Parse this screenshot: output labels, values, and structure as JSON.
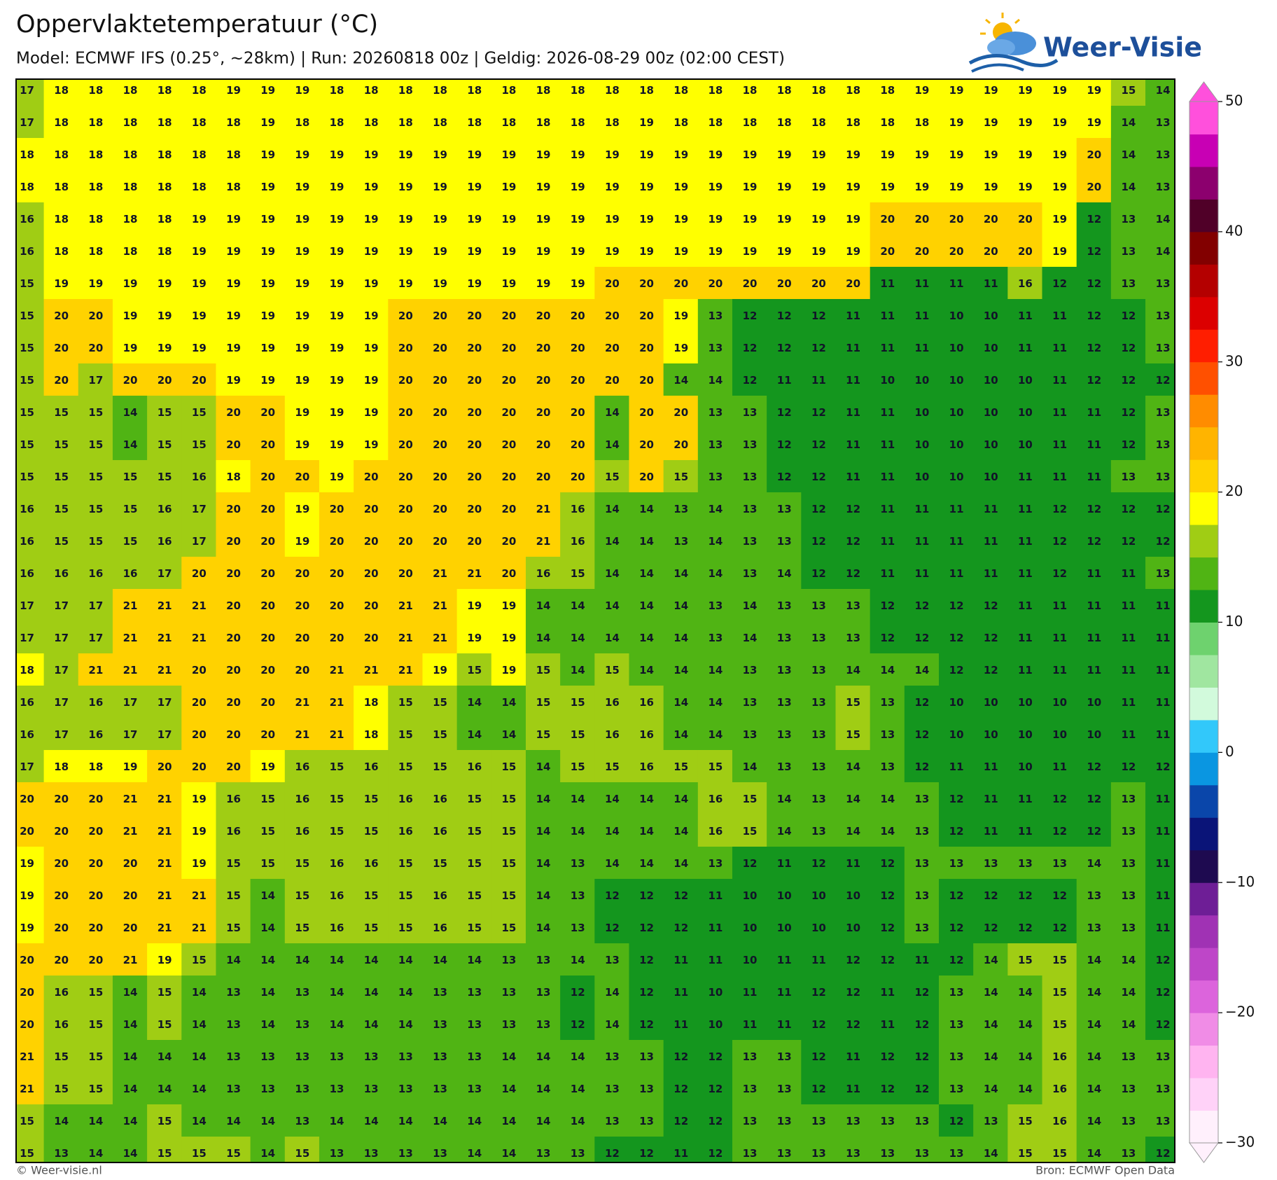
{
  "header": {
    "title": "Oppervlaktetemperatuur (°C)",
    "subtitle": "Model: ECMWF IFS (0.25°, ~28km)  |  Run: 20260818 00z  |  Geldig: 2026-08-29 00z (02:00 CEST)",
    "logo": "Weer-Visie"
  },
  "map": {
    "rows": [
      [
        17,
        18,
        18,
        18,
        18,
        18,
        19,
        19,
        19,
        18,
        18,
        18,
        18,
        18,
        18,
        18,
        18,
        18,
        18,
        18,
        18,
        18,
        18,
        18,
        18,
        18,
        19,
        19,
        19,
        19,
        19,
        19,
        15,
        14
      ],
      [
        17,
        18,
        18,
        18,
        18,
        18,
        18,
        19,
        18,
        18,
        18,
        18,
        18,
        18,
        18,
        18,
        18,
        18,
        19,
        18,
        18,
        18,
        18,
        18,
        18,
        18,
        18,
        19,
        19,
        19,
        19,
        19,
        14,
        13
      ],
      [
        18,
        18,
        18,
        18,
        18,
        18,
        18,
        19,
        19,
        19,
        19,
        19,
        19,
        19,
        19,
        19,
        19,
        19,
        19,
        19,
        19,
        19,
        19,
        19,
        19,
        19,
        19,
        19,
        19,
        19,
        19,
        20,
        14,
        13
      ],
      [
        18,
        18,
        18,
        18,
        18,
        18,
        18,
        19,
        19,
        19,
        19,
        19,
        19,
        19,
        19,
        19,
        19,
        19,
        19,
        19,
        19,
        19,
        19,
        19,
        19,
        19,
        19,
        19,
        19,
        19,
        19,
        20,
        14,
        13
      ],
      [
        16,
        18,
        18,
        18,
        18,
        19,
        19,
        19,
        19,
        19,
        19,
        19,
        19,
        19,
        19,
        19,
        19,
        19,
        19,
        19,
        19,
        19,
        19,
        19,
        19,
        20,
        20,
        20,
        20,
        20,
        19,
        12,
        13,
        14
      ],
      [
        16,
        18,
        18,
        18,
        18,
        19,
        19,
        19,
        19,
        19,
        19,
        19,
        19,
        19,
        19,
        19,
        19,
        19,
        19,
        19,
        19,
        19,
        19,
        19,
        19,
        20,
        20,
        20,
        20,
        20,
        19,
        12,
        13,
        14
      ],
      [
        15,
        19,
        19,
        19,
        19,
        19,
        19,
        19,
        19,
        19,
        19,
        19,
        19,
        19,
        19,
        19,
        19,
        20,
        20,
        20,
        20,
        20,
        20,
        20,
        20,
        11,
        11,
        11,
        11,
        16,
        12,
        12,
        13,
        13
      ],
      [
        15,
        20,
        20,
        19,
        19,
        19,
        19,
        19,
        19,
        19,
        19,
        20,
        20,
        20,
        20,
        20,
        20,
        20,
        20,
        19,
        13,
        12,
        12,
        12,
        11,
        11,
        11,
        10,
        10,
        11,
        11,
        12,
        12,
        13
      ],
      [
        15,
        20,
        20,
        19,
        19,
        19,
        19,
        19,
        19,
        19,
        19,
        20,
        20,
        20,
        20,
        20,
        20,
        20,
        20,
        19,
        13,
        12,
        12,
        12,
        11,
        11,
        11,
        10,
        10,
        11,
        11,
        12,
        12,
        13
      ],
      [
        15,
        20,
        17,
        20,
        20,
        20,
        19,
        19,
        19,
        19,
        19,
        20,
        20,
        20,
        20,
        20,
        20,
        20,
        20,
        14,
        14,
        12,
        11,
        11,
        11,
        10,
        10,
        10,
        10,
        10,
        11,
        12,
        12,
        12
      ],
      [
        15,
        15,
        15,
        14,
        15,
        15,
        20,
        20,
        19,
        19,
        19,
        20,
        20,
        20,
        20,
        20,
        20,
        14,
        20,
        20,
        13,
        13,
        12,
        12,
        11,
        11,
        10,
        10,
        10,
        10,
        11,
        11,
        12,
        13
      ],
      [
        15,
        15,
        15,
        14,
        15,
        15,
        20,
        20,
        19,
        19,
        19,
        20,
        20,
        20,
        20,
        20,
        20,
        14,
        20,
        20,
        13,
        13,
        12,
        12,
        11,
        11,
        10,
        10,
        10,
        10,
        11,
        11,
        12,
        13
      ],
      [
        15,
        15,
        15,
        15,
        15,
        16,
        18,
        20,
        20,
        19,
        20,
        20,
        20,
        20,
        20,
        20,
        20,
        15,
        20,
        15,
        13,
        13,
        12,
        12,
        11,
        11,
        10,
        10,
        10,
        11,
        11,
        11,
        13,
        13
      ],
      [
        16,
        15,
        15,
        15,
        16,
        17,
        20,
        20,
        19,
        20,
        20,
        20,
        20,
        20,
        20,
        21,
        16,
        14,
        14,
        13,
        14,
        13,
        13,
        12,
        12,
        11,
        11,
        11,
        11,
        11,
        12,
        12,
        12,
        12
      ],
      [
        16,
        15,
        15,
        15,
        16,
        17,
        20,
        20,
        19,
        20,
        20,
        20,
        20,
        20,
        20,
        21,
        16,
        14,
        14,
        13,
        14,
        13,
        13,
        12,
        12,
        11,
        11,
        11,
        11,
        11,
        12,
        12,
        12,
        12
      ],
      [
        16,
        16,
        16,
        16,
        17,
        20,
        20,
        20,
        20,
        20,
        20,
        20,
        21,
        21,
        20,
        16,
        15,
        14,
        14,
        14,
        14,
        13,
        14,
        12,
        12,
        11,
        11,
        11,
        11,
        11,
        12,
        11,
        11,
        13
      ],
      [
        17,
        17,
        17,
        21,
        21,
        21,
        20,
        20,
        20,
        20,
        20,
        21,
        21,
        19,
        19,
        14,
        14,
        14,
        14,
        14,
        13,
        14,
        13,
        13,
        13,
        12,
        12,
        12,
        12,
        11,
        11,
        11,
        11,
        11
      ],
      [
        17,
        17,
        17,
        21,
        21,
        21,
        20,
        20,
        20,
        20,
        20,
        21,
        21,
        19,
        19,
        14,
        14,
        14,
        14,
        14,
        13,
        14,
        13,
        13,
        13,
        12,
        12,
        12,
        12,
        11,
        11,
        11,
        11,
        11
      ],
      [
        18,
        17,
        21,
        21,
        21,
        20,
        20,
        20,
        20,
        21,
        21,
        21,
        19,
        15,
        19,
        15,
        14,
        15,
        14,
        14,
        14,
        13,
        13,
        13,
        14,
        14,
        14,
        12,
        12,
        11,
        11,
        11,
        11,
        11
      ],
      [
        16,
        17,
        16,
        17,
        17,
        20,
        20,
        20,
        21,
        21,
        18,
        15,
        15,
        14,
        14,
        15,
        15,
        16,
        16,
        14,
        14,
        13,
        13,
        13,
        15,
        13,
        12,
        10,
        10,
        10,
        10,
        10,
        11,
        11
      ],
      [
        16,
        17,
        16,
        17,
        17,
        20,
        20,
        20,
        21,
        21,
        18,
        15,
        15,
        14,
        14,
        15,
        15,
        16,
        16,
        14,
        14,
        13,
        13,
        13,
        15,
        13,
        12,
        10,
        10,
        10,
        10,
        10,
        11,
        11
      ],
      [
        17,
        18,
        18,
        19,
        20,
        20,
        20,
        19,
        16,
        15,
        16,
        15,
        15,
        16,
        15,
        14,
        15,
        15,
        16,
        15,
        15,
        14,
        13,
        13,
        14,
        13,
        12,
        11,
        11,
        10,
        11,
        12,
        12,
        12
      ],
      [
        20,
        20,
        20,
        21,
        21,
        19,
        16,
        15,
        16,
        15,
        15,
        16,
        16,
        15,
        15,
        14,
        14,
        14,
        14,
        14,
        16,
        15,
        14,
        13,
        14,
        14,
        13,
        12,
        11,
        11,
        12,
        12,
        13,
        11
      ],
      [
        20,
        20,
        20,
        21,
        21,
        19,
        16,
        15,
        16,
        15,
        15,
        16,
        16,
        15,
        15,
        14,
        14,
        14,
        14,
        14,
        16,
        15,
        14,
        13,
        14,
        14,
        13,
        12,
        11,
        11,
        12,
        12,
        13,
        11
      ],
      [
        19,
        20,
        20,
        20,
        21,
        19,
        15,
        15,
        15,
        16,
        16,
        15,
        15,
        15,
        15,
        14,
        13,
        14,
        14,
        14,
        13,
        12,
        11,
        12,
        11,
        12,
        13,
        13,
        13,
        13,
        13,
        14,
        13,
        11
      ],
      [
        19,
        20,
        20,
        20,
        21,
        21,
        15,
        14,
        15,
        16,
        15,
        15,
        16,
        15,
        15,
        14,
        13,
        12,
        12,
        12,
        11,
        10,
        10,
        10,
        10,
        12,
        13,
        12,
        12,
        12,
        12,
        13,
        13,
        11
      ],
      [
        19,
        20,
        20,
        20,
        21,
        21,
        15,
        14,
        15,
        16,
        15,
        15,
        16,
        15,
        15,
        14,
        13,
        12,
        12,
        12,
        11,
        10,
        10,
        10,
        10,
        12,
        13,
        12,
        12,
        12,
        12,
        13,
        13,
        11
      ],
      [
        20,
        20,
        20,
        21,
        19,
        15,
        14,
        14,
        14,
        14,
        14,
        14,
        14,
        14,
        13,
        13,
        14,
        13,
        12,
        11,
        11,
        10,
        11,
        11,
        12,
        12,
        11,
        12,
        14,
        15,
        15,
        14,
        14,
        12
      ],
      [
        20,
        16,
        15,
        14,
        15,
        14,
        13,
        14,
        13,
        14,
        14,
        14,
        13,
        13,
        13,
        13,
        12,
        14,
        12,
        11,
        10,
        11,
        11,
        12,
        12,
        11,
        12,
        13,
        14,
        14,
        15,
        14,
        14,
        12
      ],
      [
        20,
        16,
        15,
        14,
        15,
        14,
        13,
        14,
        13,
        14,
        14,
        14,
        13,
        13,
        13,
        13,
        12,
        14,
        12,
        11,
        10,
        11,
        11,
        12,
        12,
        11,
        12,
        13,
        14,
        14,
        15,
        14,
        14,
        12
      ],
      [
        21,
        15,
        15,
        14,
        14,
        14,
        13,
        13,
        13,
        13,
        13,
        13,
        13,
        13,
        14,
        14,
        14,
        13,
        13,
        12,
        12,
        13,
        13,
        12,
        11,
        12,
        12,
        13,
        14,
        14,
        16,
        14,
        13,
        13
      ],
      [
        21,
        15,
        15,
        14,
        14,
        14,
        13,
        13,
        13,
        13,
        13,
        13,
        13,
        13,
        14,
        14,
        14,
        13,
        13,
        12,
        12,
        13,
        13,
        12,
        11,
        12,
        12,
        13,
        14,
        14,
        16,
        14,
        13,
        13
      ],
      [
        15,
        14,
        14,
        14,
        15,
        14,
        14,
        14,
        13,
        14,
        14,
        14,
        14,
        14,
        14,
        14,
        14,
        13,
        13,
        12,
        12,
        13,
        13,
        13,
        13,
        13,
        13,
        12,
        13,
        15,
        16,
        14,
        13,
        13
      ],
      [
        15,
        13,
        14,
        14,
        15,
        15,
        15,
        14,
        15,
        13,
        13,
        13,
        13,
        14,
        14,
        13,
        13,
        12,
        12,
        11,
        12,
        13,
        13,
        13,
        13,
        13,
        13,
        13,
        14,
        15,
        15,
        14,
        13,
        12
      ]
    ]
  },
  "colorbar": {
    "clim": [
      -30,
      50
    ],
    "ticks": [
      {
        "value": -30,
        "label": "−30"
      },
      {
        "value": -20,
        "label": "−20"
      },
      {
        "value": -10,
        "label": "−10"
      },
      0,
      10,
      20,
      30,
      40,
      50
    ],
    "colors": [
      "#fff0fc",
      "#ffd2f8",
      "#ffb4f0",
      "#f08ce6",
      "#dc64dc",
      "#be46c8",
      "#a032b4",
      "#6e1e96",
      "#1e0a50",
      "#0a1478",
      "#0a46aa",
      "#0a96e1",
      "#32c8fa",
      "#d2fadc",
      "#a0e6a0",
      "#6ed26e",
      "#14961e",
      "#50b414",
      "#a0cd14",
      "#ffff00",
      "#ffd200",
      "#ffb400",
      "#ff8c00",
      "#ff5000",
      "#ff1e00",
      "#dc0000",
      "#b40000",
      "#820000",
      "#500028",
      "#8c006e",
      "#c800b4",
      "#ff50dc"
    ]
  },
  "footer": {
    "left": "© Weer-visie.nl",
    "right": "Bron: ECMWF Open Data"
  }
}
